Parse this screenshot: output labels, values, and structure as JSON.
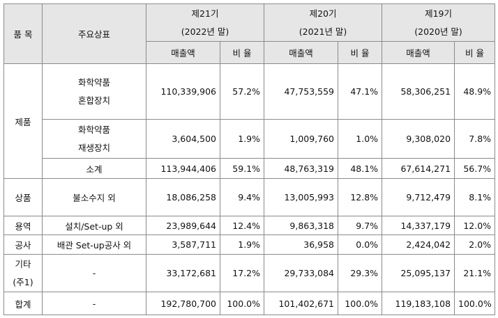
{
  "header": {
    "category": "품 목",
    "brand": "주요상표",
    "periods": [
      {
        "term": "제21기",
        "year": "(2022년 말)"
      },
      {
        "term": "제20기",
        "year": "(2021년 말)"
      },
      {
        "term": "제19기",
        "year": "(2020년 말)"
      }
    ],
    "sales_label": "매출액",
    "ratio_label": "비 율"
  },
  "rows": {
    "product_group": "제품",
    "mixer": {
      "name1": "화학약품",
      "name2": "혼합장치",
      "values": [
        "110,339,906",
        "57.2%",
        "47,753,559",
        "47.1%",
        "58,306,251",
        "48.9%"
      ]
    },
    "regen": {
      "name1": "화학약품",
      "name2": "재생장치",
      "values": [
        "3,604,500",
        "1.9%",
        "1,009,760",
        "1.0%",
        "9,308,020",
        "7.8%"
      ]
    },
    "subtotal": {
      "name": "소계",
      "values": [
        "113,944,406",
        "59.1%",
        "48,763,319",
        "48.1%",
        "67,614,271",
        "56.7%"
      ]
    },
    "goods": {
      "category": "상품",
      "name": "불소수지 외",
      "values": [
        "18,086,258",
        "9.4%",
        "13,005,993",
        "12.8%",
        "9,712,479",
        "8.1%"
      ]
    },
    "service": {
      "category": "용역",
      "name": "설치/Set-up 외",
      "values": [
        "23,989,644",
        "12.4%",
        "9,863,318",
        "9.7%",
        "14,337,179",
        "12.0%"
      ]
    },
    "construction": {
      "category": "공사",
      "name": "배관 Set-up공사 외",
      "values": [
        "3,587,711",
        "1.9%",
        "36,958",
        "0.0%",
        "2,424,042",
        "2.0%"
      ]
    },
    "other": {
      "category1": "기타",
      "category2": "(주1)",
      "name": "-",
      "values": [
        "33,172,681",
        "17.2%",
        "29,733,084",
        "29.3%",
        "25,095,137",
        "21.1%"
      ]
    },
    "total": {
      "category": "합계",
      "name": "-",
      "values": [
        "192,780,700",
        "100.0%",
        "101,402,671",
        "100.0%",
        "119,183,108",
        "100.0%"
      ]
    }
  }
}
